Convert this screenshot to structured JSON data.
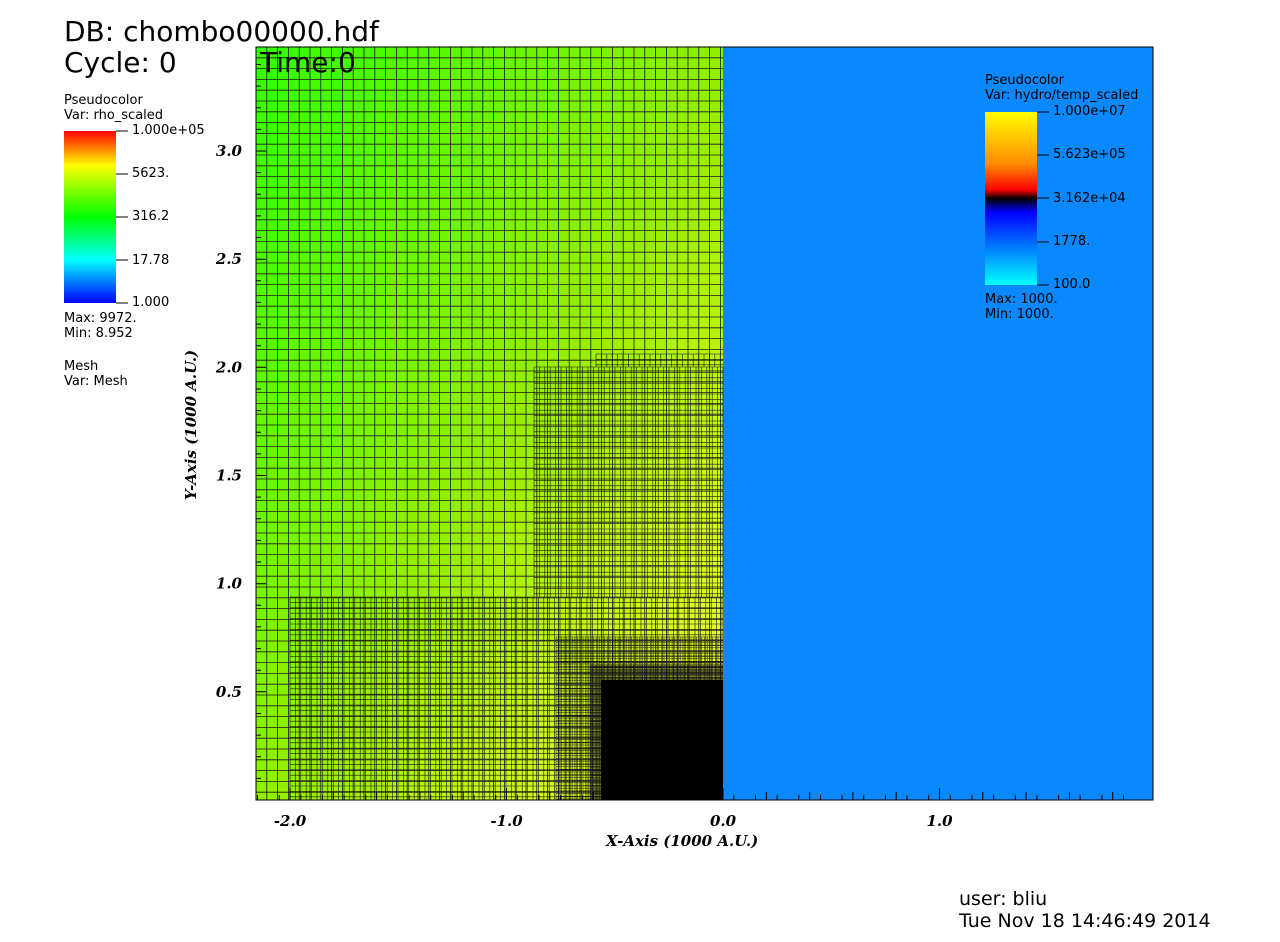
{
  "header": {
    "db": "DB: chombo00000.hdf",
    "cycle": "Cycle: 0",
    "time": "Time:0"
  },
  "legend_left": {
    "title": "Pseudocolor",
    "var": "Var: rho_scaled",
    "ticks": [
      "1.000e+05",
      "5623.",
      "316.2",
      "17.78",
      "1.000"
    ],
    "max": "Max:  9972.",
    "min": "Min:  8.952",
    "mesh_title": "Mesh",
    "mesh_var": "Var: Mesh"
  },
  "legend_right": {
    "title": "Pseudocolor",
    "var": "Var: hydro/temp_scaled",
    "ticks": [
      "1.000e+07",
      "5.623e+05",
      "3.162e+04",
      "1778.",
      "100.0"
    ],
    "max": "Max:  1000.",
    "min": "Min:  1000."
  },
  "axes": {
    "xlabel": "X-Axis (1000 A.U.)",
    "ylabel": "Y-Axis (1000 A.U.)",
    "xticks": [
      "-2.0",
      "-1.0",
      "0.0",
      "1.0"
    ],
    "yticks": [
      "3.0",
      "2.5",
      "2.0",
      "1.5",
      "1.0",
      "0.5"
    ]
  },
  "footer": {
    "user": "user: bliu",
    "date": "Tue Nov 18 14:46:49 2014"
  },
  "colors": {
    "right_region": "#0a88fd",
    "grid": "#1a1a1a"
  }
}
